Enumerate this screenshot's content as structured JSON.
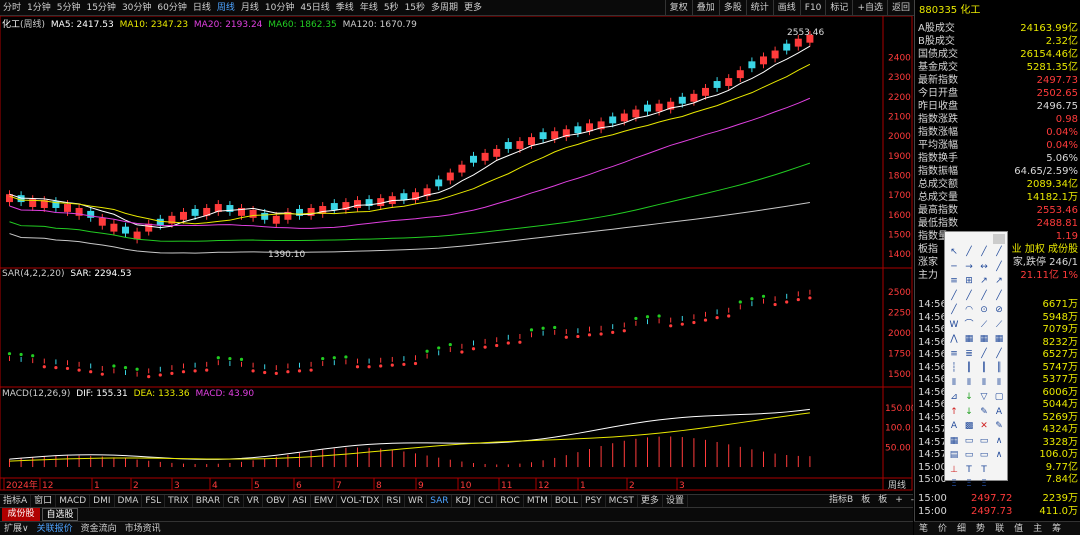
{
  "toolbar": {
    "periods": [
      "分时",
      "1分钟",
      "5分钟",
      "15分钟",
      "30分钟",
      "60分钟",
      "日线",
      "周线",
      "月线",
      "10分钟",
      "45日线",
      "季线",
      "年线",
      "5秒",
      "15秒",
      "多周期",
      "更多"
    ],
    "active_period": "周线",
    "right_tools": [
      "复权",
      "叠加",
      "多股",
      "统计",
      "画线",
      "F10",
      "标记",
      "+自选",
      "返回"
    ]
  },
  "price_header": {
    "name": "化工",
    "adj": "(周线)",
    "ma5": "MA5: 2417.53",
    "ma10": "MA10: 2347.23",
    "ma20": "MA20: 2193.24",
    "ma60": "MA60: 1862.35",
    "ma120": "MA120: 1670.79",
    "high_label": "2553.46",
    "low_label": "1390.10",
    "y_ticks": [
      "2400",
      "2300",
      "2200",
      "2100",
      "2000",
      "1900",
      "1800",
      "1700",
      "1600",
      "1500",
      "1400"
    ]
  },
  "sar_header": {
    "params": "SAR(4,2,2,20)",
    "value": "SAR: 2294.53",
    "y_ticks": [
      "2500",
      "2250",
      "2000",
      "1750",
      "1500"
    ]
  },
  "macd_header": {
    "params": "MACD(12,26,9)",
    "dif": "DIF: 155.31",
    "dea": "DEA: 133.36",
    "macd": "MACD: 43.90",
    "y_ticks": [
      "150.00",
      "100.0",
      "50.00"
    ]
  },
  "x_axis": {
    "labels": [
      "2024年",
      "12",
      "1",
      "2",
      "3",
      "4",
      "5",
      "6",
      "7",
      "8",
      "9",
      "10",
      "11",
      "12",
      "1",
      "2",
      "3"
    ],
    "right_label": "周线"
  },
  "indicator_tabs": [
    "指标A",
    "窗口",
    "MACD",
    "DMI",
    "DMA",
    "FSL",
    "TRIX",
    "BRAR",
    "CR",
    "VR",
    "OBV",
    "ASI",
    "EMV",
    "VOL-TDX",
    "RSI",
    "WR",
    "SAR",
    "KDJ",
    "CCI",
    "ROC",
    "MTM",
    "BOLL",
    "PSY",
    "MCST",
    "更多",
    "设置"
  ],
  "active_indicator": "SAR",
  "indicator_right": [
    "指标B",
    "板",
    "板",
    "+",
    "-"
  ],
  "status_bar": [
    "扩展∨",
    "关联报价",
    "资金流向",
    "市场资讯"
  ],
  "stock_tabs": [
    "成份股",
    "自选股"
  ],
  "right_panel": {
    "code": "880335",
    "name": "化工",
    "stats": [
      {
        "label": "A股成交",
        "value": "24163.99亿",
        "color": "#e8e800"
      },
      {
        "label": "B股成交",
        "value": "2.32亿",
        "color": "#e8e800"
      },
      {
        "label": "国债成交",
        "value": "26154.46亿",
        "color": "#e8e800"
      },
      {
        "label": "基金成交",
        "value": "5281.35亿",
        "color": "#e8e800"
      },
      {
        "label": "最新指数",
        "value": "2497.73",
        "color": "#ff3b3b"
      },
      {
        "label": "今日开盘",
        "value": "2502.65",
        "color": "#ff3b3b"
      },
      {
        "label": "昨日收盘",
        "value": "2496.75",
        "color": "#d8d8d8"
      },
      {
        "label": "指数涨跌",
        "value": "0.98",
        "color": "#ff3b3b"
      },
      {
        "label": "指数涨幅",
        "value": "0.04%",
        "color": "#ff3b3b"
      },
      {
        "label": "平均涨幅",
        "value": "0.04%",
        "color": "#ff3b3b"
      },
      {
        "label": "指数换手",
        "value": "5.06%",
        "color": "#d8d8d8"
      },
      {
        "label": "指数振幅",
        "value": "64.65/2.59%",
        "color": "#d8d8d8"
      },
      {
        "label": "总成交额",
        "value": "2089.34亿",
        "color": "#e8e800"
      },
      {
        "label": "总成交量",
        "value": "14182.1万",
        "color": "#e8e800"
      },
      {
        "label": "最高指数",
        "value": "2553.46",
        "color": "#ff3b3b"
      },
      {
        "label": "最低指数",
        "value": "2488.81",
        "color": "#ff3b3b"
      },
      {
        "label": "指数量",
        "value": "1.19",
        "color": "#ff3b3b"
      },
      {
        "label": "板指",
        "value": "业 加权 成份股",
        "color": "#e8e800"
      },
      {
        "label": "涨家",
        "value": "家,跌停 246/1",
        "color": "#d8d8d8"
      },
      {
        "label": "主力",
        "value": "21.11亿  1%",
        "color": "#ff3b3b"
      }
    ],
    "ticks": [
      {
        "t": "14:56",
        "v": "6671万"
      },
      {
        "t": "14:56",
        "v": "5948万"
      },
      {
        "t": "14:56",
        "v": "7079万"
      },
      {
        "t": "14:56",
        "v": "8232万"
      },
      {
        "t": "14:56",
        "v": "6527万"
      },
      {
        "t": "14:56",
        "v": "5747万"
      },
      {
        "t": "14:56",
        "v": "5377万"
      },
      {
        "t": "14:56",
        "v": "6006万"
      },
      {
        "t": "14:56",
        "v": "5044万"
      },
      {
        "t": "14:56",
        "v": "5269万"
      },
      {
        "t": "14:57",
        "v": "4324万"
      },
      {
        "t": "14:57",
        "v": "3328万"
      },
      {
        "t": "14:57",
        "v": "106.0万"
      },
      {
        "t": "15:00",
        "v": "9.77亿"
      },
      {
        "t": "15:00",
        "v": "7.84亿"
      }
    ],
    "last_ticks": [
      {
        "t": "15:00",
        "p": "2497.72",
        "v": "2239万"
      },
      {
        "t": "15:00",
        "p": "2497.73",
        "v": "411.0万"
      }
    ],
    "bottom_tabs": [
      "笔",
      "价",
      "细",
      "势",
      "联",
      "值",
      "主",
      "筹"
    ]
  },
  "colors": {
    "up": "#ff3b3b",
    "down": "#3ad6e6",
    "ma5": "#ffffff",
    "ma10": "#e8e800",
    "ma20": "#e040e0",
    "ma60": "#22cc22",
    "ma120": "#c8c8c8"
  }
}
